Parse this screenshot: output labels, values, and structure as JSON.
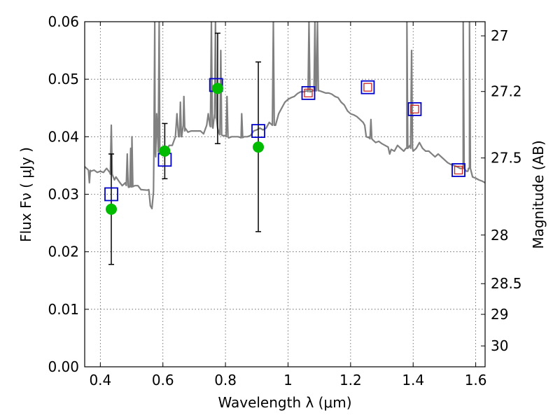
{
  "chart_data": {
    "type": "scatter",
    "xlabel": "Wavelength  λ (μm)",
    "ylabel": "Flux  Fν  ( μJy )",
    "y2label": "Magnitude (AB)",
    "xlim": [
      0.35,
      1.63
    ],
    "ylim": [
      0.0,
      0.06
    ],
    "x_ticks": [
      0.4,
      0.6,
      0.8,
      1.0,
      1.2,
      1.4,
      1.6
    ],
    "x_tick_labels": [
      "0.4",
      "0.6",
      "0.8",
      "1",
      "1.2",
      "1.4",
      "1.6"
    ],
    "y_ticks": [
      0.0,
      0.01,
      0.02,
      0.03,
      0.04,
      0.05,
      0.06
    ],
    "y_tick_labels": [
      "0.00",
      "0.01",
      "0.02",
      "0.03",
      "0.04",
      "0.05",
      "0.06"
    ],
    "y2_ticks": [
      27,
      27.2,
      27.5,
      28,
      28.5,
      29,
      30
    ],
    "y2_tick_labels": [
      "27",
      "27.2",
      "27.5",
      "28",
      "28.5",
      "29",
      "30"
    ],
    "grid": true,
    "colors": {
      "sed": "#808080",
      "observed": "#00bb00",
      "model_box": "#0000cc",
      "model_inner": "#cc2222",
      "errorbar": "#000000"
    },
    "series": [
      {
        "kind": "line",
        "points": [
          [
            0.35,
            0.0348
          ],
          [
            0.36,
            0.0343
          ],
          [
            0.37,
            0.034
          ],
          [
            0.38,
            0.0342
          ],
          [
            0.39,
            0.0338
          ],
          [
            0.4,
            0.034
          ],
          [
            0.41,
            0.0338
          ],
          [
            0.42,
            0.0345
          ],
          [
            0.43,
            0.0338
          ],
          [
            0.44,
            0.0332
          ],
          [
            0.445,
            0.0325
          ],
          [
            0.45,
            0.033
          ],
          [
            0.46,
            0.0322
          ],
          [
            0.47,
            0.0315
          ],
          [
            0.48,
            0.032
          ],
          [
            0.49,
            0.0312
          ],
          [
            0.5,
            0.0313
          ],
          [
            0.51,
            0.0315
          ],
          [
            0.52,
            0.0315
          ],
          [
            0.53,
            0.0308
          ],
          [
            0.55,
            0.0307
          ],
          [
            0.555,
            0.0308
          ],
          [
            0.56,
            0.028
          ],
          [
            0.565,
            0.0275
          ],
          [
            0.57,
            0.0305
          ],
          [
            0.575,
            0.038
          ],
          [
            0.58,
            0.044
          ],
          [
            0.585,
            0.038
          ],
          [
            0.59,
            0.037
          ],
          [
            0.6,
            0.037
          ],
          [
            0.605,
            0.038
          ],
          [
            0.61,
            0.0375
          ],
          [
            0.615,
            0.038
          ],
          [
            0.62,
            0.0385
          ],
          [
            0.63,
            0.0385
          ],
          [
            0.64,
            0.04
          ],
          [
            0.645,
            0.044
          ],
          [
            0.65,
            0.04
          ],
          [
            0.66,
            0.04
          ],
          [
            0.665,
            0.042
          ],
          [
            0.67,
            0.041
          ],
          [
            0.68,
            0.0408
          ],
          [
            0.69,
            0.041
          ],
          [
            0.7,
            0.041
          ],
          [
            0.71,
            0.041
          ],
          [
            0.72,
            0.041
          ],
          [
            0.73,
            0.0405
          ],
          [
            0.74,
            0.042
          ],
          [
            0.745,
            0.044
          ],
          [
            0.75,
            0.042
          ],
          [
            0.76,
            0.0415
          ],
          [
            0.765,
            0.044
          ],
          [
            0.775,
            0.0415
          ],
          [
            0.78,
            0.0405
          ],
          [
            0.79,
            0.0402
          ],
          [
            0.8,
            0.0402
          ],
          [
            0.81,
            0.0398
          ],
          [
            0.82,
            0.04
          ],
          [
            0.83,
            0.04
          ],
          [
            0.84,
            0.04
          ],
          [
            0.85,
            0.0398
          ],
          [
            0.86,
            0.04
          ],
          [
            0.87,
            0.04
          ],
          [
            0.88,
            0.0402
          ],
          [
            0.89,
            0.041
          ],
          [
            0.9,
            0.0412
          ],
          [
            0.91,
            0.0415
          ],
          [
            0.92,
            0.0412
          ],
          [
            0.93,
            0.0415
          ],
          [
            0.94,
            0.0425
          ],
          [
            0.95,
            0.042
          ],
          [
            0.96,
            0.042
          ],
          [
            0.97,
            0.044
          ],
          [
            0.98,
            0.045
          ],
          [
            0.99,
            0.046
          ],
          [
            1.0,
            0.0465
          ],
          [
            1.01,
            0.0468
          ],
          [
            1.02,
            0.047
          ],
          [
            1.03,
            0.0475
          ],
          [
            1.04,
            0.0478
          ],
          [
            1.05,
            0.0478
          ],
          [
            1.06,
            0.048
          ],
          [
            1.07,
            0.0478
          ],
          [
            1.08,
            0.048
          ],
          [
            1.09,
            0.048
          ],
          [
            1.1,
            0.048
          ],
          [
            1.11,
            0.0478
          ],
          [
            1.12,
            0.0476
          ],
          [
            1.13,
            0.0476
          ],
          [
            1.14,
            0.0474
          ],
          [
            1.15,
            0.047
          ],
          [
            1.16,
            0.0468
          ],
          [
            1.17,
            0.046
          ],
          [
            1.18,
            0.0455
          ],
          [
            1.19,
            0.0445
          ],
          [
            1.2,
            0.044
          ],
          [
            1.21,
            0.0438
          ],
          [
            1.22,
            0.0435
          ],
          [
            1.23,
            0.043
          ],
          [
            1.24,
            0.0425
          ],
          [
            1.245,
            0.042
          ],
          [
            1.25,
            0.04
          ],
          [
            1.26,
            0.0398
          ],
          [
            1.27,
            0.0395
          ],
          [
            1.28,
            0.039
          ],
          [
            1.29,
            0.0392
          ],
          [
            1.3,
            0.0388
          ],
          [
            1.31,
            0.0385
          ],
          [
            1.32,
            0.0382
          ],
          [
            1.325,
            0.037
          ],
          [
            1.33,
            0.0378
          ],
          [
            1.34,
            0.0375
          ],
          [
            1.35,
            0.0385
          ],
          [
            1.36,
            0.038
          ],
          [
            1.37,
            0.0375
          ],
          [
            1.38,
            0.038
          ],
          [
            1.39,
            0.0385
          ],
          [
            1.4,
            0.0375
          ],
          [
            1.41,
            0.038
          ],
          [
            1.42,
            0.039
          ],
          [
            1.43,
            0.038
          ],
          [
            1.44,
            0.0375
          ],
          [
            1.45,
            0.0375
          ],
          [
            1.46,
            0.037
          ],
          [
            1.47,
            0.0365
          ],
          [
            1.48,
            0.037
          ],
          [
            1.49,
            0.0365
          ],
          [
            1.5,
            0.036
          ],
          [
            1.51,
            0.0355
          ],
          [
            1.52,
            0.0352
          ],
          [
            1.53,
            0.035
          ],
          [
            1.54,
            0.0348
          ],
          [
            1.55,
            0.0345
          ],
          [
            1.56,
            0.0345
          ],
          [
            1.57,
            0.034
          ],
          [
            1.575,
            0.034
          ],
          [
            1.58,
            0.0345
          ],
          [
            1.59,
            0.033
          ],
          [
            1.6,
            0.0328
          ],
          [
            1.61,
            0.0325
          ],
          [
            1.62,
            0.0323
          ],
          [
            1.63,
            0.032
          ]
        ],
        "emission_lines": [
          [
            0.365,
            0.032
          ],
          [
            0.435,
            0.042
          ],
          [
            0.486,
            0.037
          ],
          [
            0.497,
            0.038
          ],
          [
            0.501,
            0.04
          ],
          [
            0.574,
            0.06
          ],
          [
            0.588,
            0.06
          ],
          [
            0.656,
            0.046
          ],
          [
            0.667,
            0.047
          ],
          [
            0.755,
            0.06
          ],
          [
            0.768,
            0.06
          ],
          [
            0.785,
            0.055
          ],
          [
            0.805,
            0.047
          ],
          [
            0.852,
            0.044
          ],
          [
            0.953,
            0.06
          ],
          [
            1.067,
            0.06
          ],
          [
            1.086,
            0.06
          ],
          [
            1.094,
            0.06
          ],
          [
            1.265,
            0.043
          ],
          [
            1.38,
            0.06
          ],
          [
            1.395,
            0.055
          ],
          [
            1.56,
            0.06
          ],
          [
            1.58,
            0.06
          ]
        ]
      },
      {
        "kind": "observed",
        "points": [
          {
            "x": 0.435,
            "y": 0.0274,
            "ylo": 0.0178,
            "yhi": 0.037
          },
          {
            "x": 0.606,
            "y": 0.0375,
            "ylo": 0.0327,
            "yhi": 0.0423
          },
          {
            "x": 0.775,
            "y": 0.0484,
            "ylo": 0.0388,
            "yhi": 0.058
          },
          {
            "x": 0.905,
            "y": 0.0382,
            "ylo": 0.0235,
            "yhi": 0.053
          }
        ]
      },
      {
        "kind": "model",
        "points": [
          {
            "x": 0.435,
            "y": 0.03,
            "inner": false
          },
          {
            "x": 0.606,
            "y": 0.036,
            "inner": false
          },
          {
            "x": 0.77,
            "y": 0.049,
            "inner": false
          },
          {
            "x": 0.905,
            "y": 0.041,
            "inner": false
          },
          {
            "x": 1.065,
            "y": 0.0476,
            "inner": true
          },
          {
            "x": 1.255,
            "y": 0.0486,
            "inner": true
          },
          {
            "x": 1.405,
            "y": 0.0448,
            "inner": true
          },
          {
            "x": 1.545,
            "y": 0.0342,
            "inner": true
          }
        ]
      }
    ]
  }
}
